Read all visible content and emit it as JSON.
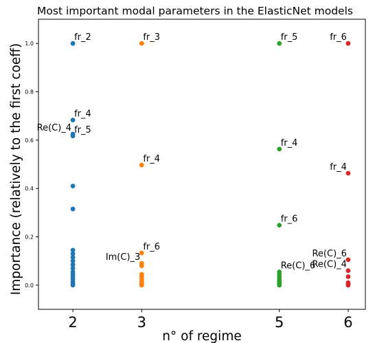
{
  "chart_data": {
    "type": "scatter",
    "title": "Most important modal parameters in the ElasticNet models",
    "xlabel": "n° of regime",
    "ylabel": "Importance (relatively to the first coeff)",
    "xlim": [
      1.5,
      6.25
    ],
    "ylim": [
      -0.1,
      1.1
    ],
    "x_ticks": [
      2,
      3,
      5,
      6
    ],
    "y_ticks": [
      0.0,
      0.2,
      0.4,
      0.6,
      0.8,
      1.0
    ],
    "y_tick_labels": [
      "0.0",
      "0.2",
      "0.4",
      "0.6",
      "0.8",
      "1.0"
    ],
    "grid": false,
    "series": [
      {
        "x": 2,
        "color": "#1f77b4",
        "values": [
          1.0,
          0.683,
          0.625,
          0.617,
          0.41,
          0.315,
          0.145,
          0.13,
          0.115,
          0.1,
          0.085,
          0.07,
          0.055,
          0.045,
          0.035,
          0.025,
          0.015,
          0.005,
          0.0
        ]
      },
      {
        "x": 3,
        "color": "#ff7f0e",
        "values": [
          1.0,
          0.497,
          0.133,
          0.09,
          0.08,
          0.045,
          0.035,
          0.025,
          0.015,
          0.005,
          0.0
        ]
      },
      {
        "x": 5,
        "color": "#2ca02c",
        "values": [
          1.0,
          0.563,
          0.248,
          0.055,
          0.045,
          0.035,
          0.025,
          0.018,
          0.012,
          0.006,
          0.0
        ]
      },
      {
        "x": 6,
        "color": "#d62728",
        "values": [
          1.0,
          0.463,
          0.105,
          0.06,
          0.035,
          0.01,
          0.003,
          0.0
        ]
      }
    ],
    "annotations": [
      {
        "text": "fr_2",
        "x": 2,
        "y": 1.0,
        "align": "right"
      },
      {
        "text": "fr_4",
        "x": 2,
        "y": 0.683,
        "align": "right"
      },
      {
        "text": "Re(C)_4",
        "x": 2,
        "y": 0.625,
        "align": "left"
      },
      {
        "text": "fr_5",
        "x": 2,
        "y": 0.617,
        "align": "right"
      },
      {
        "text": "fr_3",
        "x": 3,
        "y": 1.0,
        "align": "right"
      },
      {
        "text": "fr_4",
        "x": 3,
        "y": 0.497,
        "align": "right"
      },
      {
        "text": "fr_6",
        "x": 3,
        "y": 0.133,
        "align": "right"
      },
      {
        "text": "Im(C)_3",
        "x": 3,
        "y": 0.09,
        "align": "left"
      },
      {
        "text": "fr_5",
        "x": 5,
        "y": 1.0,
        "align": "right"
      },
      {
        "text": "fr_4",
        "x": 5,
        "y": 0.563,
        "align": "right"
      },
      {
        "text": "fr_6",
        "x": 5,
        "y": 0.248,
        "align": "right"
      },
      {
        "text": "Re(C)_6",
        "x": 5,
        "y": 0.055,
        "align": "right"
      },
      {
        "text": "fr_6",
        "x": 6,
        "y": 1.0,
        "align": "left"
      },
      {
        "text": "fr_4",
        "x": 6,
        "y": 0.463,
        "align": "left"
      },
      {
        "text": "Re(C)_6",
        "x": 6,
        "y": 0.105,
        "align": "left"
      },
      {
        "text": "Re(C)_4",
        "x": 6,
        "y": 0.06,
        "align": "left"
      }
    ]
  }
}
